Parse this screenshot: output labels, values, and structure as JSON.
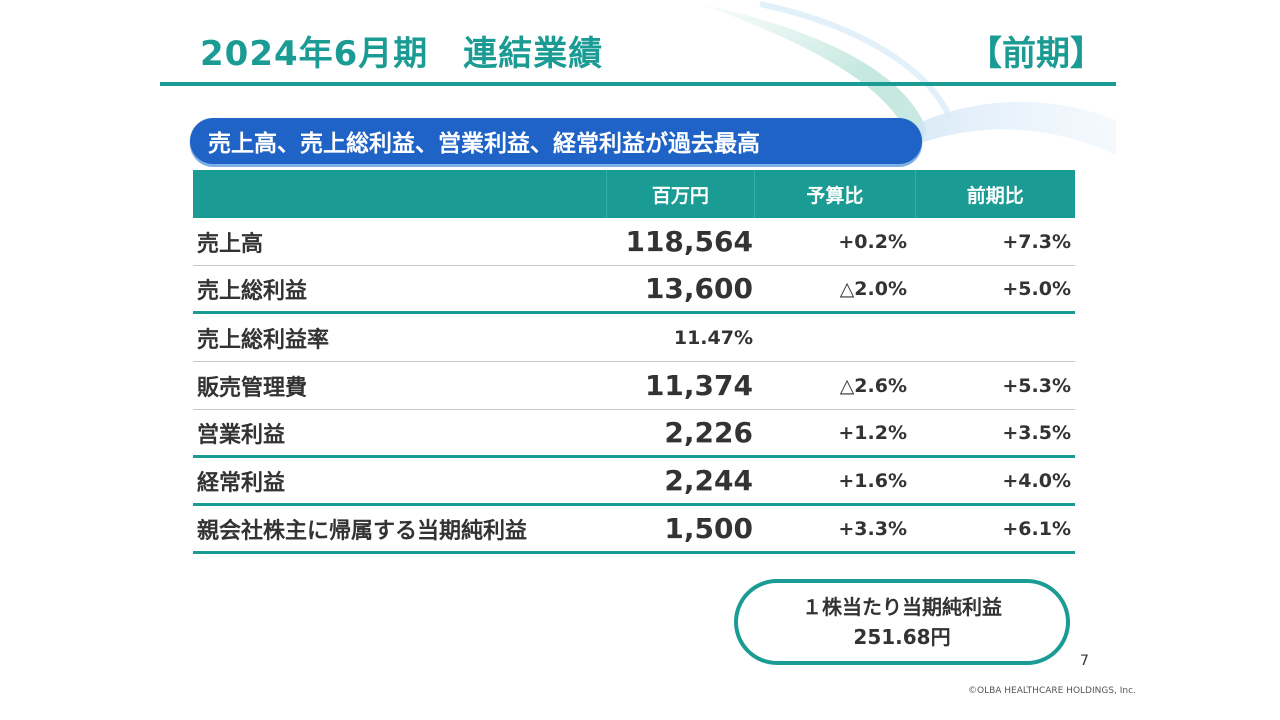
{
  "header": {
    "title": "2024年6月期　連結業績",
    "period_tag": "【前期】"
  },
  "highlight": "売上高、売上総利益、営業利益、経常利益が過去最高",
  "table": {
    "headers": [
      "",
      "百万円",
      "予算比",
      "前期比"
    ],
    "rows": [
      {
        "label": "売上高",
        "value": "118,564",
        "budget": "+0.2%",
        "yoy": "+7.3%"
      },
      {
        "label": "売上総利益",
        "value": "13,600",
        "budget": "△2.0%",
        "yoy": "+5.0%"
      },
      {
        "label": "売上総利益率",
        "value": "11.47%",
        "budget": "",
        "yoy": ""
      },
      {
        "label": "販売管理費",
        "value": "11,374",
        "budget": "△2.6%",
        "yoy": "+5.3%"
      },
      {
        "label": "営業利益",
        "value": "2,226",
        "budget": "+1.2%",
        "yoy": "+3.5%"
      },
      {
        "label": "経常利益",
        "value": "2,244",
        "budget": "+1.6%",
        "yoy": "+4.0%"
      },
      {
        "label": "親会社株主に帰属する当期純利益",
        "value": "1,500",
        "budget": "+3.3%",
        "yoy": "+6.1%"
      }
    ]
  },
  "eps": {
    "label": "１株当たり当期純利益",
    "value": "251.68円"
  },
  "footer": {
    "page_number": "7",
    "copyright": "©OLBA HEALTHCARE HOLDINGS, Inc."
  },
  "colors": {
    "accent": "#1a9b93",
    "highlight_bg": "#1f63c7"
  }
}
